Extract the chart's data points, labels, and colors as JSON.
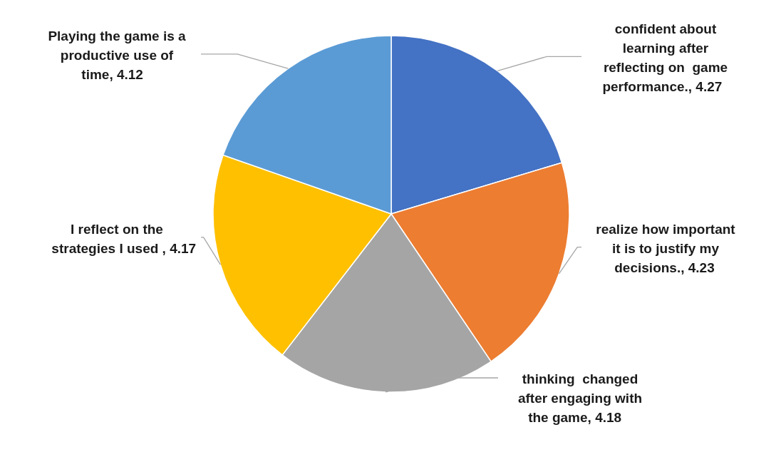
{
  "chart_data": {
    "type": "pie",
    "categories": [
      "confident about learning after reflecting on  game performance.",
      "realize how important it is to justify my decisions.",
      "thinking  changed after engaging with the game",
      "I reflect on the strategies I used ",
      "Playing the game is a productive use of time"
    ],
    "values": [
      4.27,
      4.23,
      4.18,
      4.17,
      4.12
    ],
    "value_labels": [
      ", 4.27",
      ", 4.23",
      ", 4.18",
      ", 4.17",
      ", 4.12"
    ],
    "colors": [
      "#4472c4",
      "#ed7d31",
      "#a5a5a5",
      "#ffc000",
      "#5b9bd5"
    ]
  }
}
